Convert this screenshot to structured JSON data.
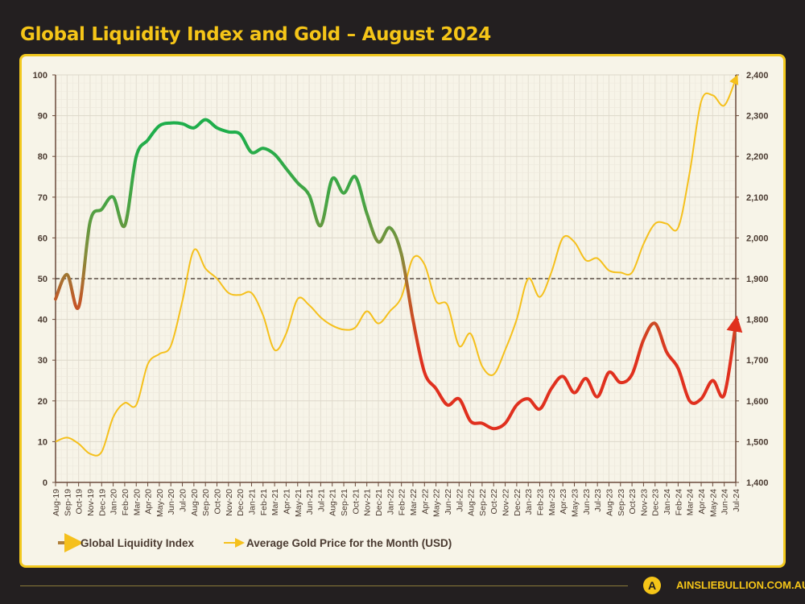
{
  "title": "Global Liquidity Index and Gold – August 2024",
  "footer": {
    "site": "AINSLIEBULLION.COM.AU",
    "logo_letter": "A"
  },
  "colors": {
    "background": "#231f20",
    "accent": "#f5c518",
    "panel": "#f7f4e8",
    "gold_line": "#f5c01c",
    "liquidity_high": "#1fae4b",
    "liquidity_mid": "#8a8a3a",
    "liquidity_low": "#e0301e"
  },
  "chart_data": {
    "type": "line",
    "title": "Global Liquidity Index and Gold – August 2024",
    "legend_position": "bottom-left",
    "grid": true,
    "reference_line": {
      "axis": "left",
      "value": 50,
      "style": "dashed"
    },
    "categories": [
      "Aug-19",
      "Sep-19",
      "Oct-19",
      "Nov-19",
      "Dec-19",
      "Jan-20",
      "Feb-20",
      "Mar-20",
      "Apr-20",
      "May-20",
      "Jun-20",
      "Jul-20",
      "Aug-20",
      "Sep-20",
      "Oct-20",
      "Nov-20",
      "Dec-20",
      "Jan-21",
      "Feb-21",
      "Mar-21",
      "Apr-21",
      "May-21",
      "Jun-21",
      "Jul-21",
      "Aug-21",
      "Sep-21",
      "Oct-21",
      "Nov-21",
      "Dec-21",
      "Jan-22",
      "Feb-22",
      "Mar-22",
      "Apr-22",
      "May-22",
      "Jun-22",
      "Jul-22",
      "Aug-22",
      "Sep-22",
      "Oct-22",
      "Nov-22",
      "Dec-22",
      "Jan-23",
      "Feb-23",
      "Mar-23",
      "Apr-23",
      "May-23",
      "Jun-23",
      "Jul-23",
      "Aug-23",
      "Sep-23",
      "Oct-23",
      "Nov-23",
      "Dec-23",
      "Jan-24",
      "Feb-24",
      "Mar-24",
      "Apr-24",
      "May-24",
      "Jun-24",
      "Jul-24"
    ],
    "y_left": {
      "range": [
        0,
        100
      ],
      "ticks": [
        "0",
        "10",
        "20",
        "30",
        "40",
        "50",
        "60",
        "70",
        "80",
        "90",
        "100"
      ]
    },
    "y_right": {
      "range": [
        1400,
        2400
      ],
      "ticks": [
        "1,400",
        "1,500",
        "1,600",
        "1,700",
        "1,800",
        "1,900",
        "2,000",
        "2,100",
        "2,200",
        "2,300",
        "2,400"
      ]
    },
    "series": [
      {
        "name": "Global Liquidity Index",
        "axis": "left",
        "values": [
          45,
          51,
          43,
          64,
          67,
          70,
          63,
          80,
          84,
          87.5,
          88.2,
          88,
          87,
          89,
          87,
          86,
          85.5,
          81,
          82,
          80.5,
          77,
          73.5,
          70.5,
          63,
          74.5,
          71,
          75,
          66,
          59,
          62.5,
          56,
          40,
          27,
          23,
          19,
          20.5,
          15,
          14.5,
          13.2,
          14.5,
          19,
          20.5,
          18,
          23,
          26,
          22,
          25.5,
          21,
          27,
          24.5,
          26.5,
          35,
          39,
          32,
          28,
          20,
          20.5,
          25,
          21.5,
          39
        ]
      },
      {
        "name": "Average Gold Price for the Month (USD)",
        "axis": "right",
        "values": [
          1500,
          1510,
          1495,
          1470,
          1475,
          1560,
          1595,
          1590,
          1690,
          1715,
          1735,
          1845,
          1970,
          1925,
          1900,
          1865,
          1860,
          1865,
          1810,
          1725,
          1765,
          1850,
          1835,
          1805,
          1785,
          1775,
          1780,
          1820,
          1790,
          1820,
          1855,
          1950,
          1935,
          1845,
          1835,
          1735,
          1765,
          1685,
          1665,
          1725,
          1800,
          1900,
          1855,
          1915,
          2000,
          1990,
          1945,
          1950,
          1920,
          1915,
          1915,
          1985,
          2035,
          2035,
          2025,
          2160,
          2335,
          2350,
          2325,
          2390
        ]
      }
    ]
  }
}
